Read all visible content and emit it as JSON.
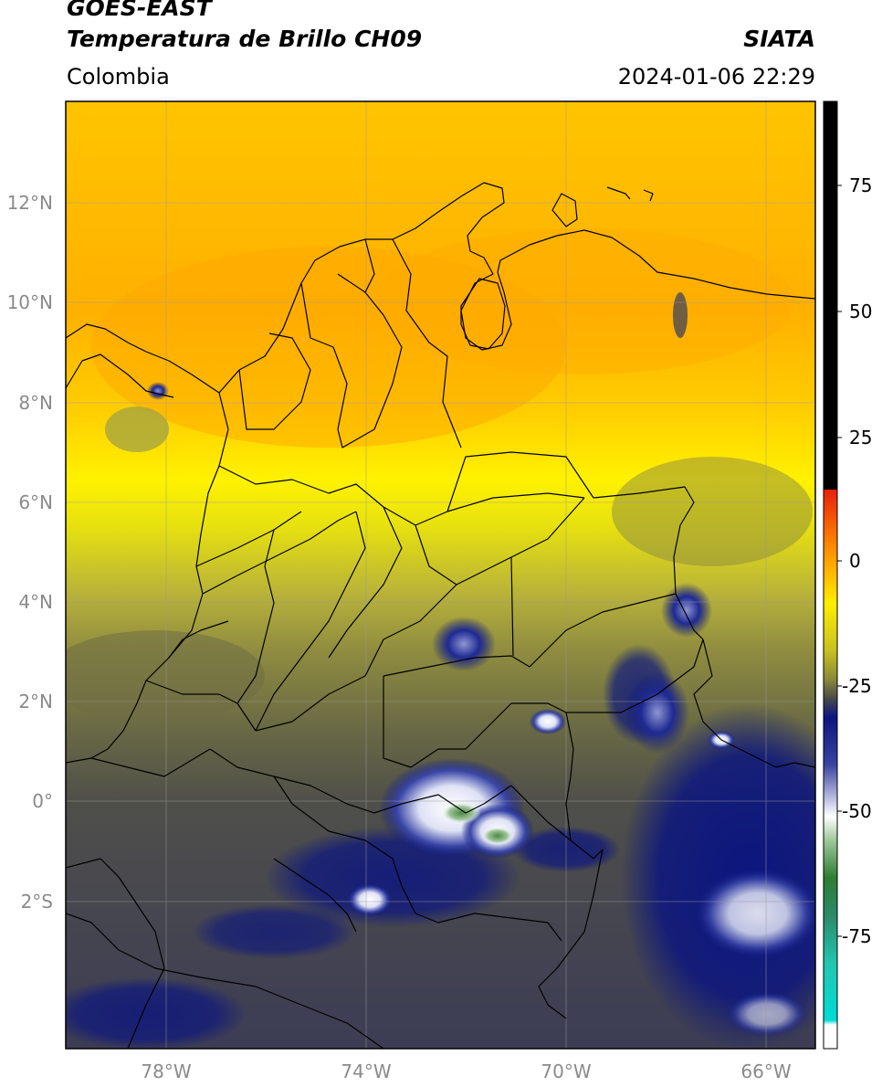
{
  "header": {
    "satellite": "GOES-EAST",
    "product": "Temperatura de Brillo CH09",
    "organization": "SIATA",
    "region": "Colombia",
    "datetime": "2024-01-06 22:29"
  },
  "map": {
    "lat_ticks": [
      "12°N",
      "10°N",
      "8°N",
      "6°N",
      "4°N",
      "2°N",
      "0°",
      "2°S"
    ],
    "lon_ticks": [
      "78°W",
      "74°W",
      "70°W",
      "66°W"
    ]
  },
  "colorbar": {
    "ticks": [
      "75",
      "50",
      "25",
      "0",
      "-25",
      "-50",
      "-75"
    ],
    "colors": {
      "warm_black": "#000000",
      "red": "#e8200a",
      "orange": "#ff9a00",
      "yellow": "#ffee00",
      "olive": "#8a8a3a",
      "gray": "#4a4a4a",
      "navy": "#0b1580",
      "white": "#ffffff",
      "green": "#2e7d32",
      "cyan": "#00dcd6"
    }
  }
}
